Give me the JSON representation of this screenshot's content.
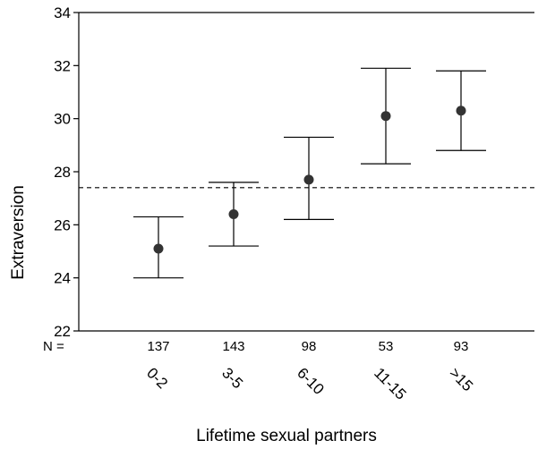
{
  "chart_data": {
    "type": "error_bar",
    "xlabel": "Lifetime sexual partners",
    "ylabel": "Extraversion",
    "ylim": [
      22,
      34
    ],
    "yticks": [
      22,
      24,
      26,
      28,
      30,
      32,
      34
    ],
    "categories": [
      "0-2",
      "3-5",
      "6-10",
      "11-15",
      ">15"
    ],
    "n_prefix": "N =",
    "n": [
      "137",
      "143",
      "98",
      "53",
      "93"
    ],
    "means": [
      25.1,
      26.4,
      27.7,
      30.1,
      30.3
    ],
    "lower": [
      24.0,
      25.2,
      26.2,
      28.3,
      28.8
    ],
    "upper": [
      26.3,
      27.6,
      29.3,
      31.9,
      31.8
    ],
    "reference_line": 27.4,
    "grid": false,
    "colors": {
      "marker": "#333333",
      "line": "#000000"
    }
  }
}
